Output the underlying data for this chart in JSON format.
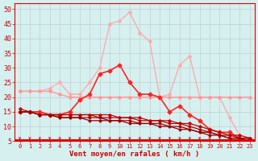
{
  "xlabel": "Vent moyen/en rafales ( km/h )",
  "xlim": [
    -0.5,
    23.5
  ],
  "ylim": [
    5,
    52
  ],
  "yticks": [
    5,
    10,
    15,
    20,
    25,
    30,
    35,
    40,
    45,
    50
  ],
  "xticks": [
    0,
    1,
    2,
    3,
    4,
    5,
    6,
    7,
    8,
    9,
    10,
    11,
    12,
    13,
    14,
    15,
    16,
    17,
    18,
    19,
    20,
    21,
    22,
    23
  ],
  "background_color": "#d6f0f0",
  "grid_color": "#c0d0d0",
  "axis_color": "#dd0000",
  "lines": [
    {
      "x": [
        0,
        1,
        2,
        3,
        4,
        5,
        6,
        7,
        8,
        9,
        10,
        11,
        12,
        13,
        14,
        15,
        16,
        17,
        18,
        19,
        20,
        21,
        22,
        23
      ],
      "y": [
        22,
        22,
        22,
        23,
        25,
        21,
        21,
        25,
        30,
        45,
        46,
        49,
        42,
        39,
        20,
        21,
        31,
        34,
        20,
        20,
        20,
        13,
        7,
        6
      ],
      "color": "#ffaaaa",
      "lw": 1.0,
      "marker": "D",
      "ms": 2.0
    },
    {
      "x": [
        0,
        1,
        2,
        3,
        4,
        5,
        6,
        7,
        8,
        9,
        10,
        11,
        12,
        13,
        14,
        15,
        16,
        17,
        18,
        19,
        20,
        21,
        22,
        23
      ],
      "y": [
        22,
        22,
        22,
        22,
        21,
        20,
        20,
        20,
        20,
        20,
        20,
        20,
        20,
        20,
        20,
        20,
        20,
        20,
        20,
        20,
        20,
        20,
        20,
        20
      ],
      "color": "#ff9999",
      "lw": 1.0,
      "marker": "D",
      "ms": 2.0
    },
    {
      "x": [
        0,
        1,
        2,
        3,
        4,
        5,
        6,
        7,
        8,
        9,
        10,
        11,
        12,
        13,
        14,
        15,
        16,
        17,
        18,
        19,
        20,
        21,
        22,
        23
      ],
      "y": [
        15,
        15,
        15,
        14,
        14,
        15,
        19,
        21,
        28,
        29,
        31,
        25,
        21,
        21,
        20,
        15,
        17,
        14,
        12,
        9,
        8,
        8,
        6,
        5
      ],
      "color": "#ff2222",
      "lw": 1.2,
      "marker": "D",
      "ms": 2.5
    },
    {
      "x": [
        0,
        1,
        2,
        3,
        4,
        5,
        6,
        7,
        8,
        9,
        10,
        11,
        12,
        13,
        14,
        15,
        16,
        17,
        18,
        19,
        20,
        21,
        22,
        23
      ],
      "y": [
        16,
        15,
        14,
        14,
        14,
        14,
        14,
        14,
        14,
        14,
        13,
        13,
        13,
        12,
        12,
        12,
        11,
        11,
        10,
        9,
        8,
        7,
        7,
        6
      ],
      "color": "#cc0000",
      "lw": 0.9,
      "marker": "D",
      "ms": 1.8
    },
    {
      "x": [
        0,
        1,
        2,
        3,
        4,
        5,
        6,
        7,
        8,
        9,
        10,
        11,
        12,
        13,
        14,
        15,
        16,
        17,
        18,
        19,
        20,
        21,
        22,
        23
      ],
      "y": [
        15,
        15,
        14,
        14,
        14,
        14,
        14,
        14,
        13,
        13,
        13,
        13,
        12,
        12,
        12,
        11,
        11,
        10,
        9,
        8,
        7,
        7,
        6,
        6
      ],
      "color": "#bb0000",
      "lw": 0.9,
      "marker": "D",
      "ms": 1.5
    },
    {
      "x": [
        0,
        1,
        2,
        3,
        4,
        5,
        6,
        7,
        8,
        9,
        10,
        11,
        12,
        13,
        14,
        15,
        16,
        17,
        18,
        19,
        20,
        21,
        22,
        23
      ],
      "y": [
        15,
        15,
        14,
        14,
        13,
        13,
        13,
        13,
        13,
        12,
        12,
        12,
        11,
        11,
        11,
        10,
        10,
        9,
        8,
        8,
        7,
        6,
        6,
        6
      ],
      "color": "#aa0000",
      "lw": 0.9,
      "marker": "D",
      "ms": 1.5
    },
    {
      "x": [
        0,
        1,
        2,
        3,
        4,
        5,
        6,
        7,
        8,
        9,
        10,
        11,
        12,
        13,
        14,
        15,
        16,
        17,
        18,
        19,
        20,
        21,
        22,
        23
      ],
      "y": [
        15,
        15,
        14,
        14,
        13,
        13,
        13,
        12,
        12,
        12,
        12,
        11,
        11,
        11,
        10,
        10,
        9,
        9,
        8,
        7,
        7,
        6,
        6,
        5
      ],
      "color": "#990000",
      "lw": 0.9,
      "marker": "D",
      "ms": 1.5
    }
  ],
  "arrow_color": "#cc0000",
  "tick_label_color": "#cc0000",
  "xlabel_color": "#cc0000",
  "xlabel_fontsize": 6.5,
  "ytick_fontsize": 6,
  "xtick_fontsize": 5
}
